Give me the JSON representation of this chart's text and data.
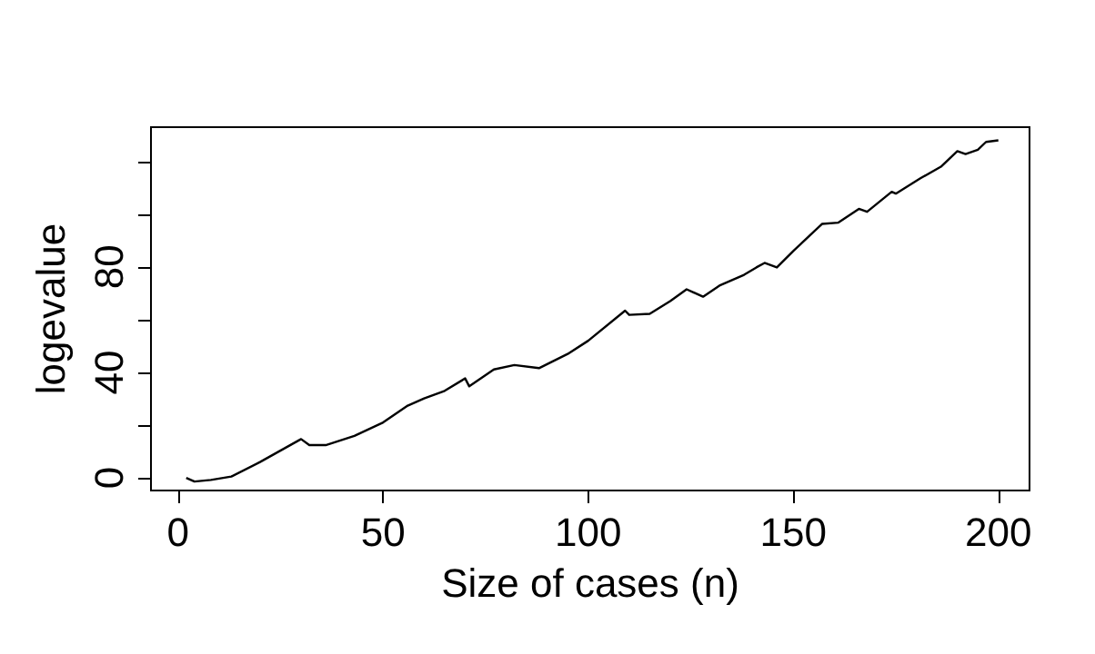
{
  "chart_data": {
    "type": "line",
    "xlabel": "Size of cases (n)",
    "ylabel": "logevalue",
    "x": [
      2,
      4,
      8,
      13,
      20,
      30,
      32,
      36,
      43,
      50,
      56,
      60,
      65,
      70,
      71,
      77,
      82,
      88,
      95,
      100,
      109,
      110,
      115,
      120,
      124,
      128,
      132,
      138,
      141,
      143,
      146,
      150,
      157,
      161,
      166,
      168,
      174,
      175,
      181,
      186,
      190,
      192,
      195,
      197,
      200
    ],
    "series": [
      {
        "color": "#000000",
        "values": [
          0,
          -1.4,
          -0.8,
          0.5,
          6,
          14.7,
          12.4,
          12.4,
          15.9,
          21,
          27.4,
          30.1,
          33,
          37.7,
          34.7,
          41.1,
          42.8,
          41.6,
          47,
          52,
          63.4,
          61.8,
          62.2,
          67,
          71.5,
          68.7,
          72.9,
          77,
          79.8,
          81.5,
          79.8,
          86,
          96.3,
          96.8,
          102,
          100.9,
          108.5,
          107.8,
          113.6,
          118,
          123.9,
          122.8,
          124.4,
          127.4,
          128
        ]
      }
    ],
    "xlim": [
      -6.6,
      207.6
    ],
    "xticks": [
      0,
      50,
      100,
      150,
      200
    ],
    "ylim": [
      -4.8,
      133
    ],
    "yticks": [
      0,
      {
        "value": 20,
        "label": null
      },
      40,
      {
        "value": 60,
        "label": null
      },
      80,
      {
        "value": 100,
        "label": null
      },
      {
        "value": 120,
        "label": null
      }
    ],
    "grid": false,
    "marker": "none",
    "line_style": "solid"
  }
}
